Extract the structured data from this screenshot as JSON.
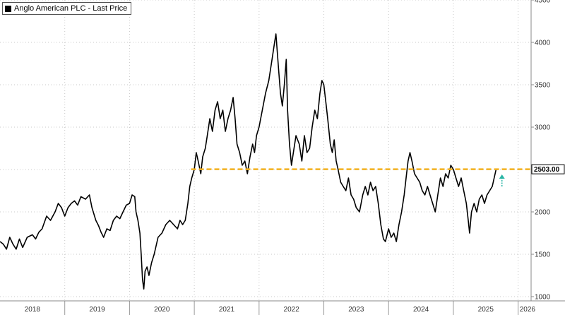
{
  "chart_data": {
    "type": "line",
    "title": "",
    "xlabel": "",
    "ylabel": "",
    "series": [
      {
        "name": "Anglo American PLC - Last Price",
        "color": "#000000",
        "points": [
          [
            2018.0,
            1650
          ],
          [
            2018.05,
            1620
          ],
          [
            2018.1,
            1560
          ],
          [
            2018.15,
            1700
          ],
          [
            2018.2,
            1620
          ],
          [
            2018.25,
            1560
          ],
          [
            2018.3,
            1680
          ],
          [
            2018.35,
            1580
          ],
          [
            2018.42,
            1700
          ],
          [
            2018.5,
            1730
          ],
          [
            2018.55,
            1680
          ],
          [
            2018.6,
            1760
          ],
          [
            2018.65,
            1800
          ],
          [
            2018.72,
            1950
          ],
          [
            2018.78,
            1900
          ],
          [
            2018.85,
            2000
          ],
          [
            2018.9,
            2100
          ],
          [
            2018.95,
            2050
          ],
          [
            2019.0,
            1950
          ],
          [
            2019.05,
            2050
          ],
          [
            2019.1,
            2100
          ],
          [
            2019.15,
            2130
          ],
          [
            2019.2,
            2080
          ],
          [
            2019.25,
            2180
          ],
          [
            2019.32,
            2150
          ],
          [
            2019.38,
            2200
          ],
          [
            2019.42,
            2050
          ],
          [
            2019.48,
            1900
          ],
          [
            2019.52,
            1840
          ],
          [
            2019.56,
            1760
          ],
          [
            2019.6,
            1700
          ],
          [
            2019.65,
            1800
          ],
          [
            2019.7,
            1780
          ],
          [
            2019.75,
            1900
          ],
          [
            2019.8,
            1950
          ],
          [
            2019.85,
            1920
          ],
          [
            2019.9,
            2000
          ],
          [
            2019.95,
            2080
          ],
          [
            2020.0,
            2100
          ],
          [
            2020.04,
            2200
          ],
          [
            2020.08,
            2180
          ],
          [
            2020.1,
            2000
          ],
          [
            2020.13,
            1900
          ],
          [
            2020.16,
            1750
          ],
          [
            2020.18,
            1500
          ],
          [
            2020.2,
            1200
          ],
          [
            2020.22,
            1090
          ],
          [
            2020.24,
            1300
          ],
          [
            2020.27,
            1350
          ],
          [
            2020.3,
            1250
          ],
          [
            2020.34,
            1400
          ],
          [
            2020.38,
            1500
          ],
          [
            2020.44,
            1700
          ],
          [
            2020.5,
            1750
          ],
          [
            2020.56,
            1850
          ],
          [
            2020.62,
            1900
          ],
          [
            2020.68,
            1850
          ],
          [
            2020.74,
            1800
          ],
          [
            2020.78,
            1900
          ],
          [
            2020.82,
            1850
          ],
          [
            2020.86,
            1900
          ],
          [
            2020.9,
            2100
          ],
          [
            2020.93,
            2300
          ],
          [
            2020.96,
            2400
          ],
          [
            2021.0,
            2500
          ],
          [
            2021.03,
            2700
          ],
          [
            2021.06,
            2600
          ],
          [
            2021.1,
            2450
          ],
          [
            2021.13,
            2650
          ],
          [
            2021.17,
            2750
          ],
          [
            2021.2,
            2900
          ],
          [
            2021.24,
            3100
          ],
          [
            2021.28,
            2950
          ],
          [
            2021.32,
            3200
          ],
          [
            2021.36,
            3300
          ],
          [
            2021.4,
            3100
          ],
          [
            2021.44,
            3200
          ],
          [
            2021.48,
            2950
          ],
          [
            2021.52,
            3100
          ],
          [
            2021.56,
            3200
          ],
          [
            2021.6,
            3350
          ],
          [
            2021.63,
            3100
          ],
          [
            2021.66,
            2800
          ],
          [
            2021.7,
            2700
          ],
          [
            2021.74,
            2550
          ],
          [
            2021.78,
            2600
          ],
          [
            2021.82,
            2450
          ],
          [
            2021.86,
            2650
          ],
          [
            2021.9,
            2800
          ],
          [
            2021.93,
            2700
          ],
          [
            2021.96,
            2900
          ],
          [
            2022.0,
            3000
          ],
          [
            2022.05,
            3200
          ],
          [
            2022.1,
            3400
          ],
          [
            2022.15,
            3550
          ],
          [
            2022.2,
            3800
          ],
          [
            2022.24,
            4000
          ],
          [
            2022.26,
            4100
          ],
          [
            2022.28,
            3900
          ],
          [
            2022.3,
            3700
          ],
          [
            2022.33,
            3400
          ],
          [
            2022.36,
            3250
          ],
          [
            2022.39,
            3500
          ],
          [
            2022.42,
            3800
          ],
          [
            2022.44,
            3200
          ],
          [
            2022.47,
            2800
          ],
          [
            2022.5,
            2550
          ],
          [
            2022.53,
            2700
          ],
          [
            2022.57,
            2900
          ],
          [
            2022.62,
            2800
          ],
          [
            2022.66,
            2600
          ],
          [
            2022.7,
            2900
          ],
          [
            2022.74,
            2700
          ],
          [
            2022.78,
            2750
          ],
          [
            2022.82,
            3000
          ],
          [
            2022.86,
            3200
          ],
          [
            2022.9,
            3100
          ],
          [
            2022.94,
            3400
          ],
          [
            2022.97,
            3550
          ],
          [
            2023.0,
            3500
          ],
          [
            2023.03,
            3300
          ],
          [
            2023.06,
            3100
          ],
          [
            2023.1,
            2800
          ],
          [
            2023.13,
            2700
          ],
          [
            2023.16,
            2850
          ],
          [
            2023.19,
            2600
          ],
          [
            2023.22,
            2500
          ],
          [
            2023.26,
            2350
          ],
          [
            2023.3,
            2300
          ],
          [
            2023.34,
            2250
          ],
          [
            2023.38,
            2400
          ],
          [
            2023.42,
            2200
          ],
          [
            2023.46,
            2150
          ],
          [
            2023.5,
            2050
          ],
          [
            2023.55,
            2000
          ],
          [
            2023.6,
            2200
          ],
          [
            2023.64,
            2300
          ],
          [
            2023.68,
            2200
          ],
          [
            2023.72,
            2350
          ],
          [
            2023.76,
            2250
          ],
          [
            2023.8,
            2300
          ],
          [
            2023.84,
            2100
          ],
          [
            2023.88,
            1850
          ],
          [
            2023.92,
            1680
          ],
          [
            2023.95,
            1650
          ],
          [
            2024.0,
            1800
          ],
          [
            2024.04,
            1700
          ],
          [
            2024.08,
            1750
          ],
          [
            2024.12,
            1650
          ],
          [
            2024.16,
            1850
          ],
          [
            2024.2,
            2000
          ],
          [
            2024.24,
            2200
          ],
          [
            2024.27,
            2400
          ],
          [
            2024.3,
            2600
          ],
          [
            2024.33,
            2700
          ],
          [
            2024.36,
            2600
          ],
          [
            2024.4,
            2450
          ],
          [
            2024.44,
            2400
          ],
          [
            2024.48,
            2350
          ],
          [
            2024.52,
            2250
          ],
          [
            2024.56,
            2200
          ],
          [
            2024.6,
            2300
          ],
          [
            2024.64,
            2200
          ],
          [
            2024.68,
            2100
          ],
          [
            2024.72,
            2000
          ],
          [
            2024.76,
            2200
          ],
          [
            2024.8,
            2400
          ],
          [
            2024.84,
            2300
          ],
          [
            2024.88,
            2450
          ],
          [
            2024.92,
            2400
          ],
          [
            2024.96,
            2550
          ],
          [
            2025.0,
            2500
          ],
          [
            2025.04,
            2400
          ],
          [
            2025.08,
            2300
          ],
          [
            2025.12,
            2400
          ],
          [
            2025.16,
            2250
          ],
          [
            2025.2,
            2100
          ],
          [
            2025.23,
            1900
          ],
          [
            2025.25,
            1750
          ],
          [
            2025.28,
            2000
          ],
          [
            2025.32,
            2100
          ],
          [
            2025.36,
            2000
          ],
          [
            2025.4,
            2150
          ],
          [
            2025.44,
            2200
          ],
          [
            2025.48,
            2100
          ],
          [
            2025.52,
            2200
          ],
          [
            2025.56,
            2250
          ],
          [
            2025.6,
            2300
          ],
          [
            2025.63,
            2400
          ],
          [
            2025.66,
            2503
          ]
        ]
      }
    ],
    "reference_line": {
      "value": 2503,
      "label": "2503.00",
      "x_start": 2020.95,
      "color": "#f2b01e",
      "style": "dashed"
    },
    "y_ticks": [
      1000,
      1500,
      2000,
      2500,
      3000,
      3500,
      4000,
      4500
    ],
    "y_tick_labels": [
      "1000",
      "1500",
      "2000",
      "",
      "3000",
      "3500",
      "4000",
      "4500"
    ],
    "x_ticks": [
      "2018",
      "2019",
      "2020",
      "2021",
      "2022",
      "2023",
      "2024",
      "2025",
      "2026"
    ],
    "xlim": [
      2018.0,
      2026.2
    ],
    "ylim": [
      950,
      4500
    ],
    "grid": true,
    "legend_position": "top-left",
    "y_axis_side": "right",
    "arrow_marker": {
      "x": 2025.75,
      "y": 2300,
      "color": "#2ab5a5"
    }
  }
}
